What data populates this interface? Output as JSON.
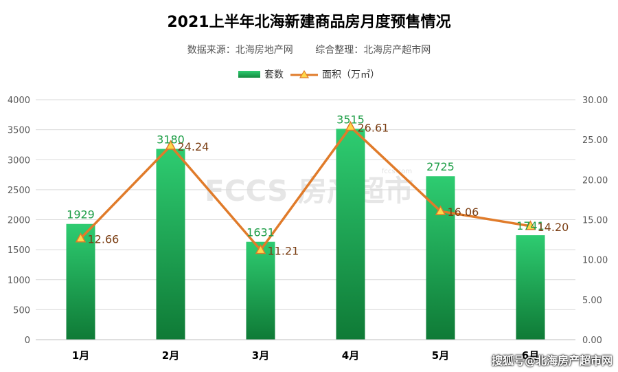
{
  "header": {
    "title": "2021上半年北海新建商品房月度预售情况",
    "source": "数据来源：北海房地产网",
    "compiler": "综合整理：北海房产超市网"
  },
  "watermark": {
    "logo_text": "FCCS 房产超市",
    "logo_small": "fccs.com",
    "footer": "搜狐号@北海房产超市网"
  },
  "colors": {
    "bar_top": "#2ecc71",
    "bar_bottom": "#0f7a36",
    "line": "#e07b2a",
    "bar_label": "#1e9e47",
    "line_label": "#7a3d12",
    "marker_fill": "#ffd84a",
    "grid": "#d9d9d9"
  },
  "chart_data": {
    "type": "bar+line",
    "categories": [
      "1月",
      "2月",
      "3月",
      "4月",
      "5月",
      "6月"
    ],
    "series": [
      {
        "name": "套数",
        "type": "bar",
        "axis": "left",
        "values": [
          1929,
          3180,
          1631,
          3515,
          2725,
          1741
        ],
        "labels": [
          "1929",
          "3180",
          "1631",
          "3515",
          "2725",
          "1741"
        ]
      },
      {
        "name": "面积（万㎡）",
        "type": "line",
        "axis": "right",
        "values": [
          12.66,
          24.24,
          11.21,
          26.61,
          16.06,
          14.2
        ],
        "labels": [
          "12.66",
          "24.24",
          "11.21",
          "26.61",
          "16.06",
          "14.20"
        ]
      }
    ],
    "y_left": {
      "min": 0,
      "max": 4000,
      "ticks": [
        "0",
        "500",
        "1000",
        "1500",
        "2000",
        "2500",
        "3000",
        "3500",
        "4000"
      ]
    },
    "y_right": {
      "min": 0,
      "max": 30,
      "ticks": [
        "0.00",
        "5.00",
        "10.00",
        "15.00",
        "20.00",
        "25.00",
        "30.00"
      ]
    },
    "grid": true,
    "legend_position": "top-center"
  }
}
